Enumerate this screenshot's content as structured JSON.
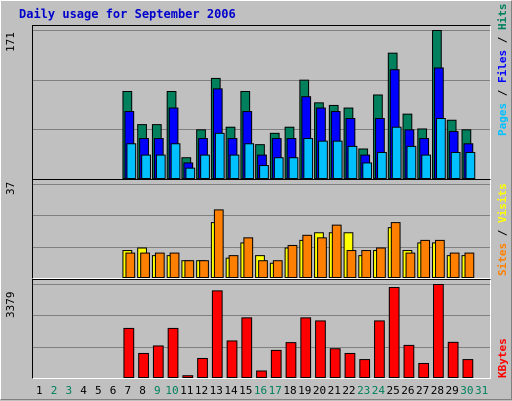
{
  "title": "Daily usage for September 2006",
  "chart_data": {
    "type": "bar",
    "days": [
      "1",
      "2",
      "3",
      "4",
      "5",
      "6",
      "7",
      "8",
      "9",
      "10",
      "11",
      "12",
      "13",
      "14",
      "15",
      "16",
      "17",
      "18",
      "19",
      "20",
      "21",
      "22",
      "23",
      "24",
      "25",
      "26",
      "27",
      "28",
      "29",
      "30",
      "31"
    ],
    "weekend_days": [
      "2",
      "3",
      "9",
      "10",
      "16",
      "17",
      "23",
      "24",
      "30",
      "31"
    ],
    "top_panel": {
      "ymax_label": "171",
      "ymax": 171,
      "right_label": {
        "pages": "Pages",
        "files": "Files",
        "hits": "Hits"
      },
      "series": [
        {
          "name": "Hits",
          "color": "#00805c",
          "values": [
            0,
            0,
            0,
            0,
            0,
            0,
            101,
            63,
            63,
            101,
            25,
            57,
            116,
            60,
            101,
            40,
            53,
            60,
            114,
            88,
            85,
            82,
            35,
            97,
            145,
            75,
            58,
            171,
            68,
            57,
            0
          ]
        },
        {
          "name": "Files",
          "color": "#0000ff",
          "values": [
            0,
            0,
            0,
            0,
            0,
            0,
            78,
            47,
            47,
            82,
            19,
            47,
            104,
            47,
            78,
            28,
            47,
            47,
            95,
            82,
            78,
            70,
            28,
            70,
            126,
            57,
            47,
            128,
            55,
            41,
            0
          ]
        },
        {
          "name": "Pages",
          "color": "#00c0ff",
          "values": [
            0,
            0,
            0,
            0,
            0,
            0,
            41,
            28,
            28,
            41,
            13,
            28,
            53,
            28,
            41,
            16,
            25,
            25,
            47,
            44,
            44,
            38,
            19,
            31,
            60,
            38,
            28,
            70,
            31,
            31,
            0
          ]
        }
      ]
    },
    "middle_panel": {
      "ymax_label": "37",
      "ymax": 37,
      "right_label": {
        "sites": "Sites",
        "visits": "Visits"
      },
      "series": [
        {
          "name": "Visits",
          "color": "#ffff00",
          "values": [
            0,
            0,
            0,
            0,
            0,
            0,
            11,
            12,
            9,
            9,
            7,
            7,
            22,
            8,
            14,
            9,
            6,
            12,
            15,
            18,
            18,
            18,
            9,
            11,
            20,
            11,
            14,
            14,
            9,
            9,
            0
          ]
        },
        {
          "name": "Sites",
          "color": "#ff8000",
          "values": [
            0,
            0,
            0,
            0,
            0,
            0,
            10,
            10,
            10,
            10,
            7,
            7,
            27,
            9,
            16,
            7,
            7,
            13,
            17,
            16,
            21,
            11,
            11,
            12,
            22,
            10,
            15,
            15,
            10,
            10,
            0
          ]
        }
      ]
    },
    "bottom_panel": {
      "ymax_label": "3379",
      "ymax": 3379,
      "right_label": "KBytes",
      "series": [
        {
          "name": "KBytes",
          "color": "#ff0000",
          "values": [
            0,
            0,
            0,
            0,
            0,
            0,
            1800,
            900,
            1170,
            1800,
            100,
            720,
            3150,
            1350,
            2180,
            270,
            1010,
            1290,
            2180,
            2070,
            1070,
            900,
            680,
            2070,
            3270,
            1190,
            540,
            3379,
            1300,
            680,
            0
          ]
        }
      ]
    },
    "grid": true
  }
}
